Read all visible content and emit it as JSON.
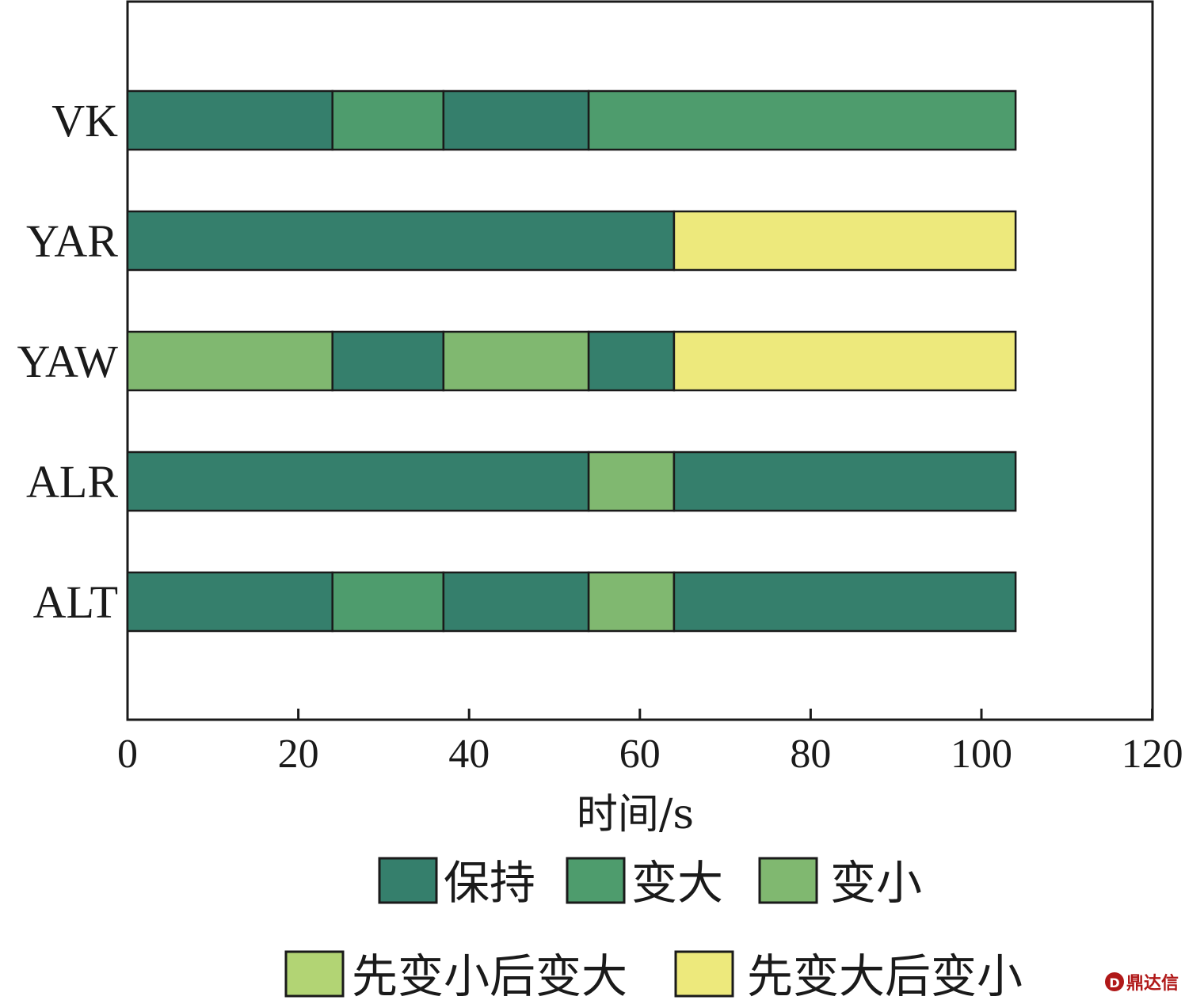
{
  "chart_data": {
    "type": "bar",
    "orientation": "horizontal",
    "stacked": true,
    "xlabel": "时间/s",
    "ylabel": "",
    "xlim": [
      0,
      120
    ],
    "xticks": [
      0,
      20,
      40,
      60,
      80,
      100,
      120
    ],
    "categories": [
      "VK",
      "YAR",
      "YAW",
      "ALR",
      "ALT"
    ],
    "states": [
      {
        "name": "保持",
        "color": "#357f6c"
      },
      {
        "name": "变大",
        "color": "#4e9c6d"
      },
      {
        "name": "变小",
        "color": "#80b870"
      },
      {
        "name": "先变小后变大",
        "color": "#b2d474"
      },
      {
        "name": "先变大后变小",
        "color": "#ede97c"
      }
    ],
    "rows": [
      {
        "category": "VK",
        "segments": [
          {
            "start": 0,
            "end": 24,
            "state": "保持"
          },
          {
            "start": 24,
            "end": 37,
            "state": "变大"
          },
          {
            "start": 37,
            "end": 54,
            "state": "保持"
          },
          {
            "start": 54,
            "end": 104,
            "state": "变大"
          }
        ]
      },
      {
        "category": "YAR",
        "segments": [
          {
            "start": 0,
            "end": 64,
            "state": "保持"
          },
          {
            "start": 64,
            "end": 104,
            "state": "先变大后变小"
          }
        ]
      },
      {
        "category": "YAW",
        "segments": [
          {
            "start": 0,
            "end": 24,
            "state": "变小"
          },
          {
            "start": 24,
            "end": 37,
            "state": "保持"
          },
          {
            "start": 37,
            "end": 54,
            "state": "变小"
          },
          {
            "start": 54,
            "end": 64,
            "state": "保持"
          },
          {
            "start": 64,
            "end": 104,
            "state": "先变大后变小"
          }
        ]
      },
      {
        "category": "ALR",
        "segments": [
          {
            "start": 0,
            "end": 54,
            "state": "保持"
          },
          {
            "start": 54,
            "end": 64,
            "state": "变小"
          },
          {
            "start": 64,
            "end": 104,
            "state": "保持"
          }
        ]
      },
      {
        "category": "ALT",
        "segments": [
          {
            "start": 0,
            "end": 24,
            "state": "保持"
          },
          {
            "start": 24,
            "end": 37,
            "state": "变大"
          },
          {
            "start": 37,
            "end": 54,
            "state": "保持"
          },
          {
            "start": 54,
            "end": 64,
            "state": "变小"
          },
          {
            "start": 64,
            "end": 104,
            "state": "保持"
          }
        ]
      }
    ],
    "legend": {
      "placement": "bottom"
    },
    "grid": false
  },
  "watermark": {
    "text": "鼎达信"
  }
}
